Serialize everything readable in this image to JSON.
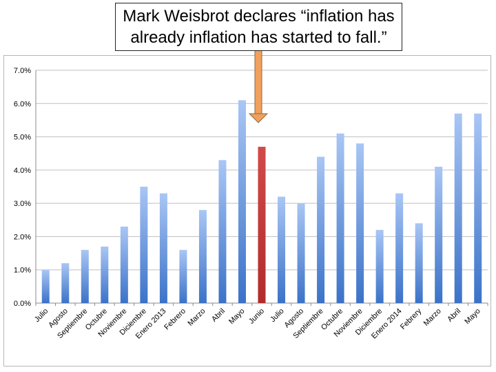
{
  "callout": {
    "text": "Mark Weisbrot declares “inflation has already inflation has started to fall.”"
  },
  "colors": {
    "bar_top": "#a9c6f5",
    "bar_bottom": "#3b72c8",
    "highlight_top": "#d04a4a",
    "highlight_bottom": "#b02c2c",
    "arrow": "#f2a05c",
    "grid": "#bfbfbf"
  },
  "chart_data": {
    "type": "bar",
    "title": "",
    "xlabel": "",
    "ylabel": "",
    "ylim": [
      0,
      7
    ],
    "yticks": [
      "0.0%",
      "1.0%",
      "2.0%",
      "3.0%",
      "4.0%",
      "5.0%",
      "6.0%",
      "7.0%"
    ],
    "grid": true,
    "highlight_index": 11,
    "categories": [
      "Julio",
      "Agosto",
      "Septiembre",
      "Octubre",
      "Noviembre",
      "Diciembre",
      "Enero 2013",
      "Febrero",
      "Marzo",
      "Abril",
      "Mayo",
      "Junio",
      "Julio",
      "Agosto",
      "Septiembre",
      "Octubre",
      "Noviembre",
      "Diciembre",
      "Enero 2014",
      "Febrery",
      "Marzo",
      "Abril",
      "Mayo"
    ],
    "values": [
      1.0,
      1.2,
      1.6,
      1.7,
      2.3,
      3.5,
      3.3,
      1.6,
      2.8,
      4.3,
      6.1,
      4.7,
      3.2,
      3.0,
      4.4,
      5.1,
      4.8,
      2.2,
      3.3,
      2.4,
      4.1,
      5.7,
      5.7
    ]
  }
}
